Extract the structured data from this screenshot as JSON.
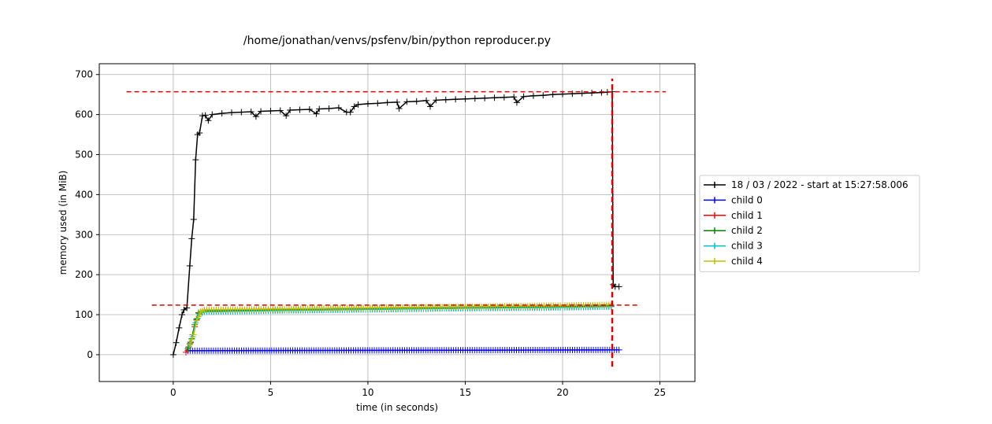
{
  "chart_data": {
    "type": "line",
    "title": "/home/jonathan/venvs/psfenv/bin/python reproducer.py",
    "xlabel": "time (in seconds)",
    "ylabel": "memory used (in MiB)",
    "xlim": [
      -3.8,
      26.8
    ],
    "ylim": [
      -67,
      727
    ],
    "x_ticks": [
      0,
      5,
      10,
      15,
      20,
      25
    ],
    "y_ticks": [
      0,
      100,
      200,
      300,
      400,
      500,
      600,
      700
    ],
    "grid": true,
    "legend_position": "outside-right",
    "series": [
      {
        "name": "18 / 03 / 2022 - start at 15:27:58.006",
        "color": "#000000",
        "x": [
          0,
          0.15,
          0.3,
          0.45,
          0.55,
          0.7,
          0.85,
          0.95,
          1.05,
          1.15,
          1.25,
          1.35,
          1.5,
          1.65,
          1.8,
          2.0,
          2.5,
          3.0,
          3.5,
          4.0,
          4.25,
          4.5,
          5.0,
          5.5,
          5.8,
          6.0,
          6.5,
          7.0,
          7.35,
          7.5,
          8.0,
          8.5,
          8.9,
          9.1,
          9.3,
          9.5,
          10.0,
          10.5,
          11.0,
          11.5,
          11.6,
          12.0,
          12.5,
          13.0,
          13.2,
          13.5,
          14.0,
          14.5,
          15.0,
          15.5,
          16.0,
          16.5,
          17.0,
          17.5,
          17.65,
          18.0,
          18.5,
          19.0,
          19.5,
          20.0,
          20.5,
          21.0,
          21.5,
          22.0,
          22.3,
          22.55,
          22.6,
          22.7,
          22.9
        ],
        "y": [
          0,
          30,
          67,
          100,
          112,
          117,
          222,
          290,
          338,
          487,
          550,
          554,
          597,
          598,
          585,
          600,
          603,
          605,
          606,
          607,
          595,
          608,
          609,
          610,
          597,
          611,
          612,
          613,
          602,
          614,
          615,
          617,
          606,
          606,
          620,
          625,
          627,
          628,
          630,
          631,
          615,
          632,
          633,
          635,
          620,
          636,
          637,
          638,
          639,
          640,
          641,
          642,
          643,
          644,
          630,
          645,
          647,
          648,
          650,
          651,
          652,
          653,
          654,
          655,
          656,
          657,
          175,
          170,
          170
        ]
      },
      {
        "name": "child 0",
        "color": "#0000ff",
        "x": [
          0.75,
          22.9
        ],
        "y": [
          10,
          12
        ]
      },
      {
        "name": "child 1",
        "color": "#ff0000",
        "x": [
          0.65,
          0.9,
          1.1,
          1.3,
          1.6,
          5,
          10,
          15,
          20,
          22.5
        ],
        "y": [
          6,
          30,
          70,
          105,
          110,
          112,
          116,
          118,
          120,
          122
        ]
      },
      {
        "name": "child 2",
        "color": "#008000",
        "x": [
          0.75,
          0.95,
          1.1,
          1.3,
          1.6,
          5,
          10,
          15,
          20,
          22.5
        ],
        "y": [
          15,
          40,
          75,
          104,
          109,
          111,
          114,
          117,
          119,
          121
        ]
      },
      {
        "name": "child 3",
        "color": "#00bfbf",
        "x": [
          0.8,
          1.0,
          1.15,
          1.35,
          1.6,
          5,
          10,
          15,
          20,
          22.5
        ],
        "y": [
          20,
          45,
          80,
          102,
          107,
          110,
          113,
          116,
          118,
          120
        ]
      },
      {
        "name": "child 4",
        "color": "#bfbf00",
        "x": [
          0.85,
          1.05,
          1.2,
          1.4,
          1.6,
          5,
          10,
          15,
          20,
          22.5
        ],
        "y": [
          25,
          50,
          85,
          106,
          112,
          114,
          117,
          120,
          123,
          125
        ]
      }
    ],
    "reference_lines": [
      {
        "orientation": "horizontal",
        "y": 657,
        "x_from": -2.4,
        "x_to": 25.3,
        "color": "#dd0000"
      },
      {
        "orientation": "horizontal",
        "y": 124,
        "x_from": -1.1,
        "x_to": 24.0,
        "color": "#dd0000"
      },
      {
        "orientation": "vertical",
        "x": 22.55,
        "y_from": -30,
        "y_to": 690,
        "color": "#dd0000"
      }
    ]
  }
}
